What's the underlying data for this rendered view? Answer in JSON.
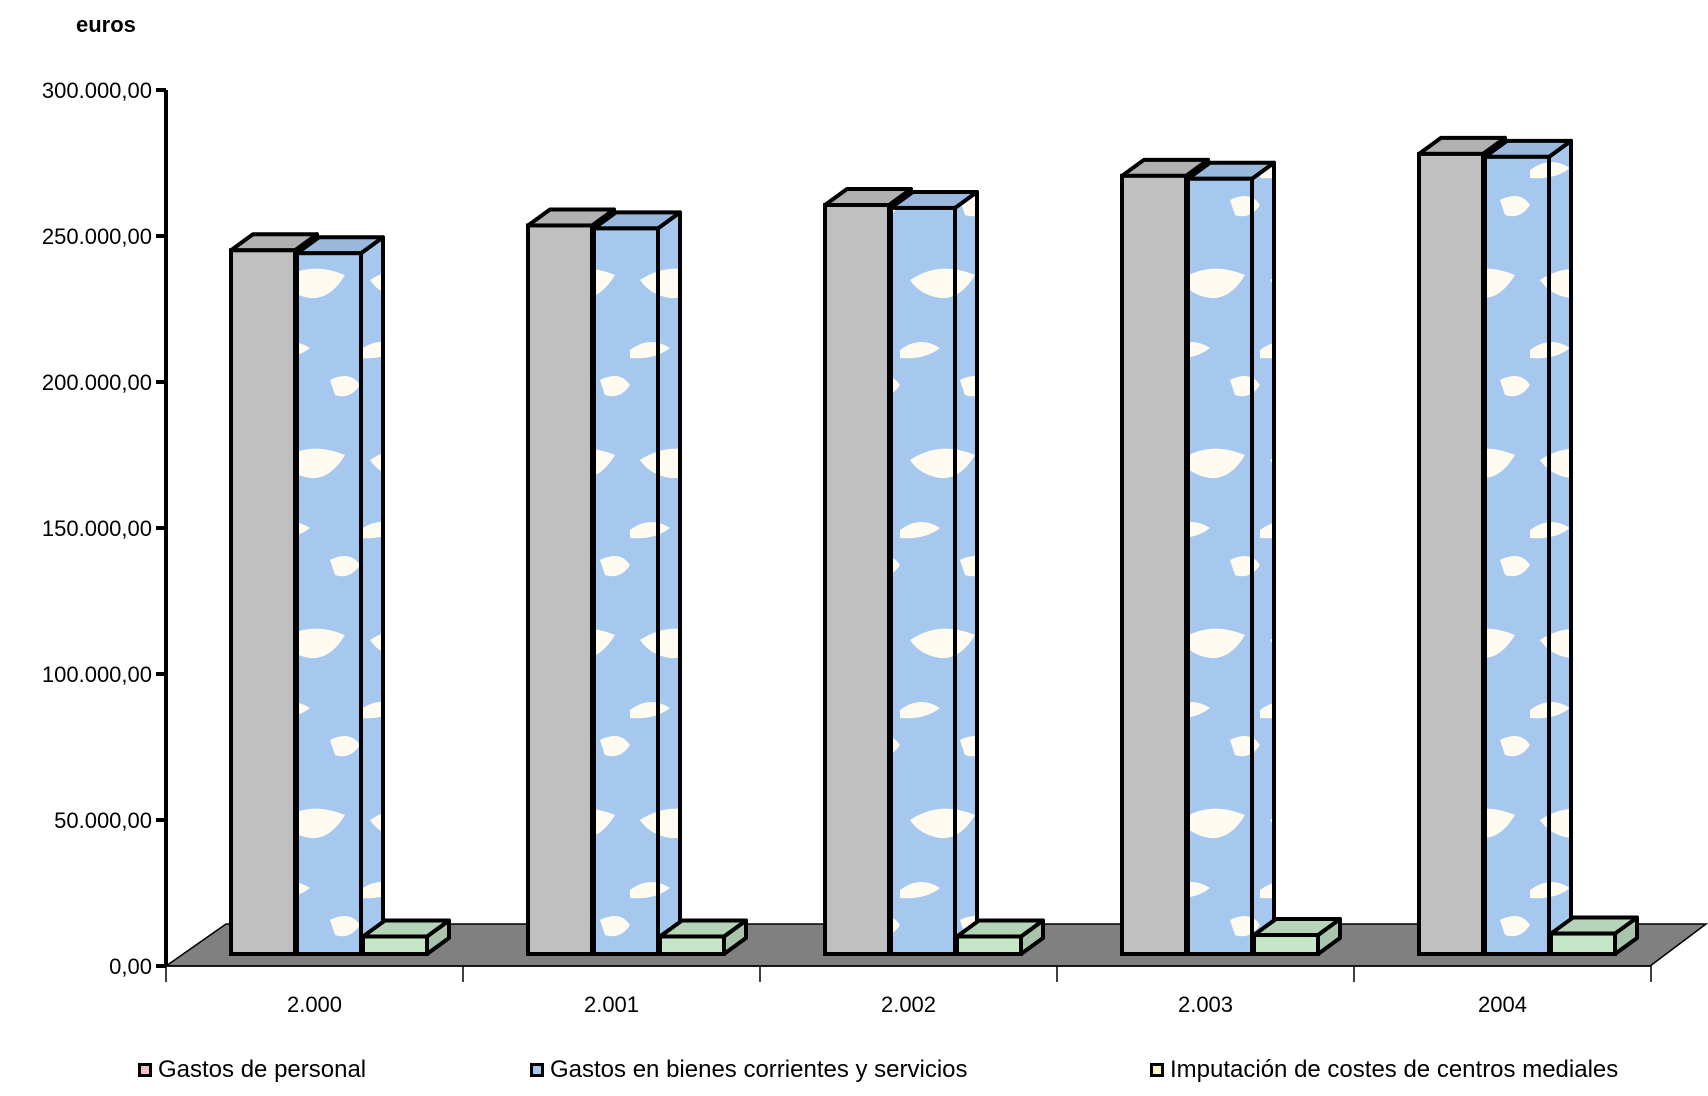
{
  "chart_data": {
    "type": "bar",
    "variant": "3d-clustered",
    "ylabel": "euros",
    "ylim": [
      0,
      300000
    ],
    "y_ticks": [
      0,
      50000,
      100000,
      150000,
      200000,
      250000,
      300000
    ],
    "y_tick_labels": [
      "0,00",
      "50.000,00",
      "100.000,00",
      "150.000,00",
      "200.000,00",
      "250.000,00",
      "300.000,00"
    ],
    "categories": [
      "2.000",
      "2.001",
      "2.002",
      "2.003",
      "2004"
    ],
    "series": [
      {
        "name": "Gastos de personal",
        "values": [
          241000,
          249500,
          256500,
          266500,
          274000
        ],
        "color": "#c0c0c0"
      },
      {
        "name": "Gastos en bienes corrientes y servicios",
        "values": [
          240000,
          248500,
          255500,
          265500,
          273000
        ],
        "color": "#a6c8ef"
      },
      {
        "name": "Imputación de costes de centros mediales",
        "values": [
          6000,
          6000,
          6000,
          6500,
          7000
        ],
        "color": "#c6e6c8"
      }
    ],
    "legend_swatch_colors": [
      "#f2c2c2",
      "#a6c8ef",
      "#fff3c4"
    ],
    "floor_color": "#808080",
    "grid": false,
    "legend_position": "bottom"
  }
}
